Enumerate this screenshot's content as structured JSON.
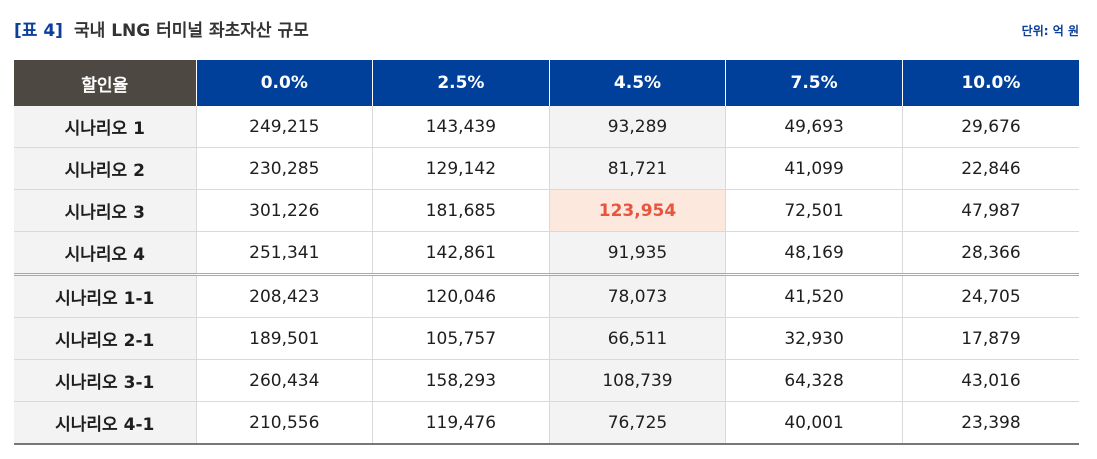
{
  "title": {
    "tag": "[표 4]",
    "text": "국내 LNG 터미널 좌초자산 규모",
    "unit": "단위: 억 원"
  },
  "table": {
    "corner_label": "할인율",
    "columns": [
      "0.0%",
      "2.5%",
      "4.5%",
      "7.5%",
      "10.0%"
    ],
    "rows": [
      {
        "label": "시나리오 1",
        "values": [
          "249,215",
          "143,439",
          "93,289",
          "49,693",
          "29,676"
        ]
      },
      {
        "label": "시나리오 2",
        "values": [
          "230,285",
          "129,142",
          "81,721",
          "41,099",
          "22,846"
        ]
      },
      {
        "label": "시나리오 3",
        "values": [
          "301,226",
          "181,685",
          "123,954",
          "72,501",
          "47,987"
        ]
      },
      {
        "label": "시나리오 4",
        "values": [
          "251,341",
          "142,861",
          "91,935",
          "48,169",
          "28,366"
        ]
      },
      {
        "label": "시나리오 1-1",
        "values": [
          "208,423",
          "120,046",
          "78,073",
          "41,520",
          "24,705"
        ]
      },
      {
        "label": "시나리오 2-1",
        "values": [
          "189,501",
          "105,757",
          "66,511",
          "32,930",
          "17,879"
        ]
      },
      {
        "label": "시나리오 3-1",
        "values": [
          "260,434",
          "158,293",
          "108,739",
          "64,328",
          "43,016"
        ]
      },
      {
        "label": "시나리오 4-1",
        "values": [
          "210,556",
          "119,476",
          "76,725",
          "40,001",
          "23,398"
        ]
      }
    ],
    "highlight_color": "#e8553e",
    "header_color": "#00409a"
  }
}
